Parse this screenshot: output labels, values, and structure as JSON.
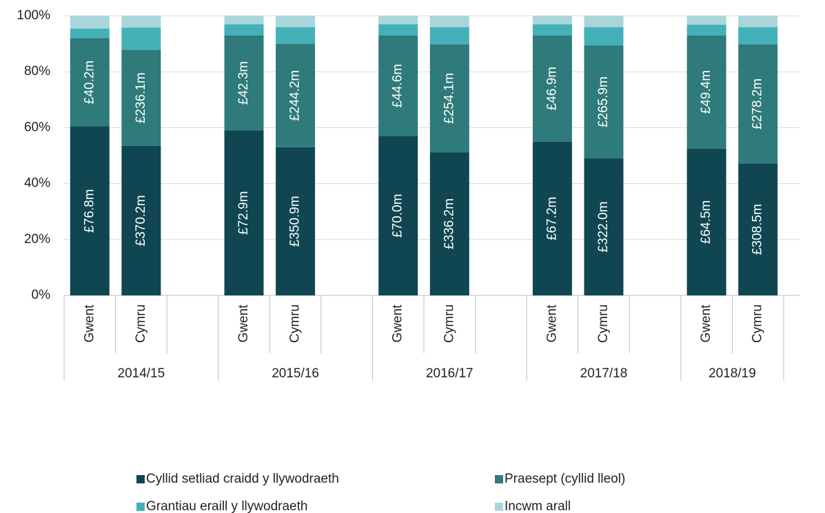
{
  "chart_data": {
    "type": "stacked-bar",
    "categories": [
      "Gwent",
      "Cymru",
      null,
      "Gwent",
      "Cymru",
      null,
      "Gwent",
      "Cymru",
      null,
      "Gwent",
      "Cymru",
      null,
      "Gwent",
      "Cymru"
    ],
    "groups": [
      "2014/15",
      "2015/16",
      "2016/17",
      "2017/18",
      "2018/19"
    ],
    "series": [
      {
        "name": "Cyllid setliad craidd y llywodraeth",
        "color": "#0f4651",
        "values": [
          60.5,
          53.5,
          null,
          59,
          53,
          null,
          57,
          51.2,
          null,
          55,
          49,
          null,
          52.5,
          47.2
        ],
        "amounts": [
          "£76.8m",
          "£370.2m",
          null,
          "£72.9m",
          "£350.9m",
          null,
          "£70.0m",
          "£336.2m",
          null,
          "£67.2m",
          "£322.0m",
          null,
          "£64.5m",
          "£308.5m"
        ]
      },
      {
        "name": "Praesept (cyllid lleol)",
        "color": "#2f7a7a",
        "values": [
          31.5,
          34.3,
          null,
          34,
          37,
          null,
          36,
          38.6,
          null,
          38,
          40.4,
          null,
          40.5,
          42.6
        ],
        "amounts": [
          "£40.2m",
          "£236.1m",
          null,
          "£42.3m",
          "£244.2m",
          null,
          "£44.6m",
          "£254.1m",
          null,
          "£46.9m",
          "£265.9m",
          null,
          "£49.4m",
          "£278.2m"
        ]
      },
      {
        "name": "Grantiau eraill y llywodraeth",
        "color": "#44b0b8",
        "values": [
          3.5,
          8,
          null,
          4,
          6,
          null,
          4,
          6.2,
          null,
          4,
          6.6,
          null,
          3.8,
          6.2
        ]
      },
      {
        "name": "Incwm arall",
        "color": "#a9d6da",
        "values": [
          4.5,
          4.2,
          null,
          3,
          4,
          null,
          3,
          4,
          null,
          3,
          4,
          null,
          3.2,
          4
        ]
      }
    ],
    "ylim": [
      0,
      100
    ],
    "yticks": [
      {
        "value": 0,
        "label": "0%"
      },
      {
        "value": 20,
        "label": "20%"
      },
      {
        "value": 40,
        "label": "40%"
      },
      {
        "value": 60,
        "label": "60%"
      },
      {
        "value": 80,
        "label": "80%"
      },
      {
        "value": 100,
        "label": "100%"
      }
    ],
    "grid": true,
    "legend": "bottom"
  }
}
